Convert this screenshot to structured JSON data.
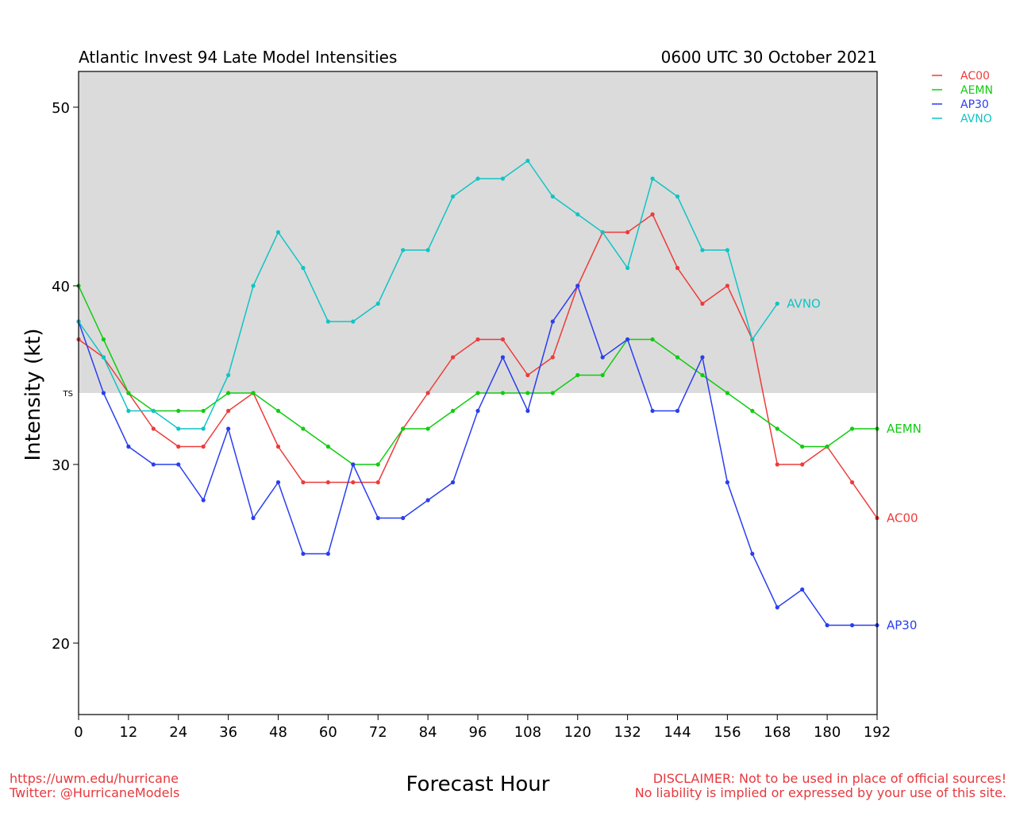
{
  "chart_data": {
    "type": "line",
    "title": "Atlantic Invest 94 Late Model Intensities",
    "subtitle": "0600 UTC 30 October 2021",
    "xlabel": "Forecast Hour",
    "ylabel": "Intensity (kt)",
    "xlim": [
      0,
      192
    ],
    "ylim": [
      16,
      52
    ],
    "x_ticks": [
      0,
      12,
      24,
      36,
      48,
      60,
      72,
      84,
      96,
      108,
      120,
      132,
      144,
      156,
      168,
      180,
      192
    ],
    "y_ticks": [
      20,
      30,
      40,
      50
    ],
    "threshold": {
      "label": "TS",
      "value": 34,
      "shade_color": "#dbdbdb"
    },
    "legend_position": "top-right-outside",
    "series": [
      {
        "name": "AC00",
        "color": "#ee3b3b",
        "x": [
          0,
          6,
          12,
          18,
          24,
          30,
          36,
          42,
          48,
          54,
          60,
          66,
          72,
          78,
          84,
          90,
          96,
          102,
          108,
          114,
          120,
          126,
          132,
          138,
          144,
          150,
          156,
          162,
          168,
          174,
          180,
          186,
          192
        ],
        "values": [
          37,
          36,
          34,
          32,
          31,
          31,
          33,
          34,
          31,
          29,
          29,
          29,
          29,
          32,
          34,
          36,
          37,
          37,
          35,
          36,
          40,
          43,
          43,
          44,
          41,
          39,
          40,
          37,
          30,
          30,
          31,
          29,
          27
        ]
      },
      {
        "name": "AEMN",
        "color": "#11cc11",
        "x": [
          0,
          6,
          12,
          18,
          24,
          30,
          36,
          42,
          48,
          54,
          60,
          66,
          72,
          78,
          84,
          90,
          96,
          102,
          108,
          114,
          120,
          126,
          132,
          138,
          144,
          150,
          156,
          162,
          168,
          174,
          180,
          186,
          192
        ],
        "values": [
          40,
          37,
          34,
          33,
          33,
          33,
          34,
          34,
          33,
          32,
          31,
          30,
          30,
          32,
          32,
          33,
          34,
          34,
          34,
          34,
          35,
          35,
          37,
          37,
          36,
          35,
          34,
          33,
          32,
          31,
          31,
          32,
          32
        ]
      },
      {
        "name": "AP30",
        "color": "#2a3ef0",
        "x": [
          0,
          6,
          12,
          18,
          24,
          30,
          36,
          42,
          48,
          54,
          60,
          66,
          72,
          78,
          84,
          90,
          96,
          102,
          108,
          114,
          120,
          126,
          132,
          138,
          144,
          150,
          156,
          162,
          168,
          174,
          180,
          186,
          192
        ],
        "values": [
          38,
          34,
          31,
          30,
          30,
          28,
          32,
          27,
          29,
          25,
          25,
          30,
          27,
          27,
          28,
          29,
          33,
          36,
          33,
          38,
          40,
          36,
          37,
          33,
          33,
          36,
          29,
          25,
          22,
          23,
          21,
          21,
          21
        ]
      },
      {
        "name": "AVNO",
        "color": "#11c4c4",
        "x": [
          0,
          6,
          12,
          18,
          24,
          30,
          36,
          42,
          48,
          54,
          60,
          66,
          72,
          78,
          84,
          90,
          96,
          102,
          108,
          114,
          120,
          126,
          132,
          138,
          144,
          150,
          156,
          162,
          168
        ],
        "values": [
          38,
          36,
          33,
          33,
          32,
          32,
          35,
          40,
          43,
          41,
          38,
          38,
          39,
          42,
          42,
          45,
          46,
          46,
          47,
          45,
          44,
          43,
          41,
          46,
          45,
          42,
          42,
          37,
          39
        ]
      }
    ]
  },
  "footer": {
    "url": "https://uwm.edu/hurricane",
    "twitter": "Twitter: @HurricaneModels",
    "disclaimer_line1": "DISCLAIMER: Not to be used in place of official sources!",
    "disclaimer_line2": "No liability is implied or expressed by your use of this site."
  }
}
